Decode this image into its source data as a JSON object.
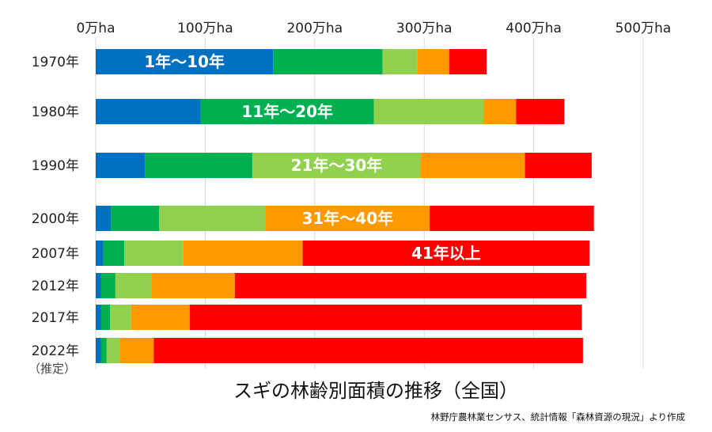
{
  "chart_data": {
    "type": "bar",
    "orientation": "horizontal",
    "stacked": true,
    "title": "スギの林齢別面積の推移（全国）",
    "source": "林野庁農林業センサス、統計情報「森林資源の現況」より作成",
    "x_unit": "万ha",
    "xlim": [
      0,
      500
    ],
    "x_ticks": [
      "0万ha",
      "100万ha",
      "200万ha",
      "300万ha",
      "400万ha",
      "500万ha"
    ],
    "x_tick_values": [
      0,
      100,
      200,
      300,
      400,
      500
    ],
    "grid": "vertical",
    "categories": [
      "1970年",
      "1980年",
      "1990年",
      "2000年",
      "2007年",
      "2012年",
      "2017年",
      "2022年"
    ],
    "category_notes": {
      "2022年": "（推定）"
    },
    "series": [
      {
        "name": "1年～10年",
        "color": "#0070C0",
        "values": [
          162,
          96,
          45,
          14,
          7,
          5,
          5,
          5
        ]
      },
      {
        "name": "11年～20年",
        "color": "#00B050",
        "values": [
          100,
          158,
          98,
          44,
          19,
          13,
          8,
          5
        ]
      },
      {
        "name": "21年～30年",
        "color": "#92D050",
        "values": [
          32,
          100,
          154,
          97,
          54,
          33,
          19,
          12
        ]
      },
      {
        "name": "31年～40年",
        "color": "#FF9900",
        "values": [
          29,
          30,
          95,
          150,
          109,
          76,
          54,
          31
        ]
      },
      {
        "name": "41年以上",
        "color": "#FF0000",
        "values": [
          34,
          44,
          61,
          150,
          262,
          321,
          358,
          392
        ]
      }
    ],
    "series_labels": [
      {
        "text": "1年～10年",
        "series": 0,
        "category": "1970年"
      },
      {
        "text": "11年～20年",
        "series": 1,
        "category": "1980年"
      },
      {
        "text": "21年～30年",
        "series": 2,
        "category": "1990年"
      },
      {
        "text": "31年～40年",
        "series": 3,
        "category": "2000年"
      },
      {
        "text": "41年以上",
        "series": 4,
        "category": "2007年"
      }
    ]
  }
}
